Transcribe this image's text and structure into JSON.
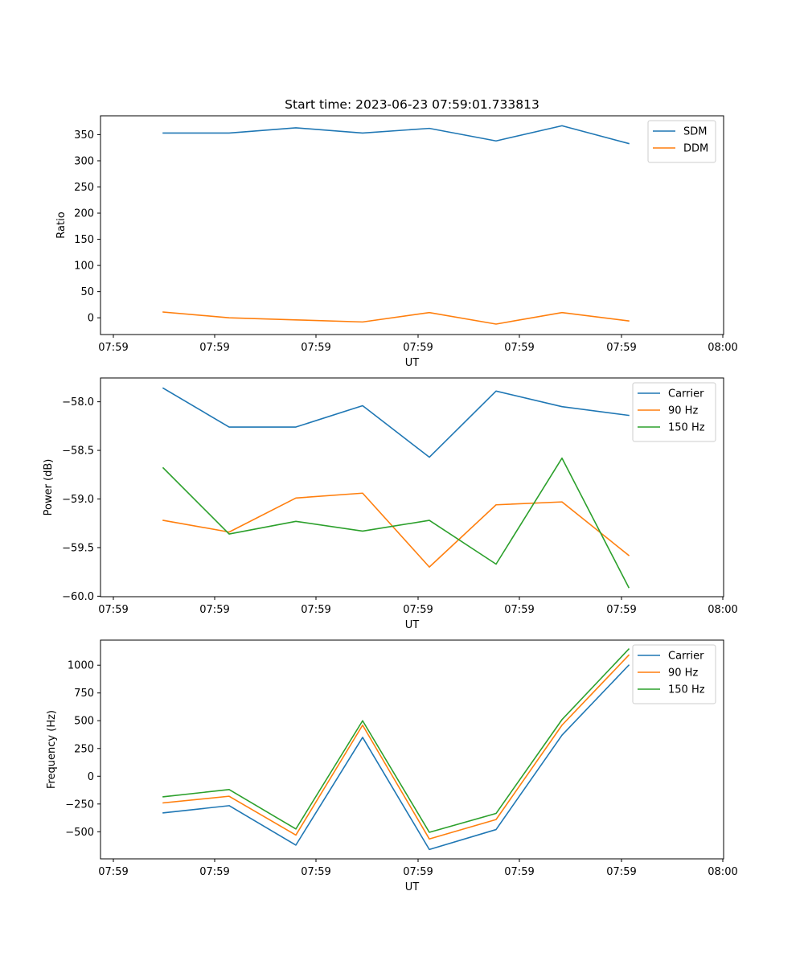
{
  "title": "Start time: 2023-06-23 07:59:01.733813",
  "colors": {
    "c0": "#1f77b4",
    "c1": "#ff7f0e",
    "c2": "#2ca02c"
  },
  "chart_data": [
    {
      "type": "line",
      "xlabel": "UT",
      "ylabel": "Ratio",
      "x_tick_labels": [
        "07:59",
        "07:59",
        "07:59",
        "07:59",
        "07:59",
        "07:59",
        "08:00"
      ],
      "y_ticks": [
        0,
        50,
        100,
        150,
        200,
        250,
        300,
        350
      ],
      "y_tick_labels": [
        "0",
        "50",
        "100",
        "150",
        "200",
        "250",
        "300",
        "350"
      ],
      "ylim": [
        -32,
        386
      ],
      "legend_placement": "top-right",
      "grid": false,
      "series": [
        {
          "name": "SDM",
          "color": "#1f77b4",
          "values": [
            353,
            353,
            363,
            353,
            362,
            338,
            367,
            333
          ]
        },
        {
          "name": "DDM",
          "color": "#ff7f0e",
          "values": [
            11,
            0,
            -4,
            -8,
            10,
            -12,
            10,
            -6
          ]
        }
      ]
    },
    {
      "type": "line",
      "xlabel": "UT",
      "ylabel": "Power (dB)",
      "x_tick_labels": [
        "07:59",
        "07:59",
        "07:59",
        "07:59",
        "07:59",
        "07:59",
        "08:00"
      ],
      "y_ticks": [
        -60.0,
        -59.5,
        -59.0,
        -58.5,
        -58.0
      ],
      "y_tick_labels": [
        "−60.0",
        "−59.5",
        "−59.0",
        "−58.5",
        "−58.0"
      ],
      "ylim": [
        -60.005,
        -57.755
      ],
      "legend_placement": "top-right",
      "grid": false,
      "series": [
        {
          "name": "Carrier",
          "color": "#1f77b4",
          "values": [
            -57.86,
            -58.26,
            -58.26,
            -58.04,
            -58.57,
            -57.89,
            -58.05,
            -58.14
          ]
        },
        {
          "name": "90 Hz",
          "color": "#ff7f0e",
          "values": [
            -59.22,
            -59.34,
            -58.99,
            -58.94,
            -59.7,
            -59.06,
            -59.03,
            -59.58
          ]
        },
        {
          "name": "150 Hz",
          "color": "#2ca02c",
          "values": [
            -58.68,
            -59.36,
            -59.23,
            -59.33,
            -59.22,
            -59.67,
            -58.58,
            -59.91
          ]
        }
      ]
    },
    {
      "type": "line",
      "xlabel": "UT",
      "ylabel": "Frequency (Hz)",
      "x_tick_labels": [
        "07:59",
        "07:59",
        "07:59",
        "07:59",
        "07:59",
        "07:59",
        "08:00"
      ],
      "y_ticks": [
        -500,
        -250,
        0,
        250,
        500,
        750,
        1000
      ],
      "y_tick_labels": [
        "−500",
        "−250",
        "0",
        "250",
        "500",
        "750",
        "1000"
      ],
      "ylim": [
        -744,
        1226
      ],
      "legend_placement": "top-right",
      "grid": false,
      "series": [
        {
          "name": "Carrier",
          "color": "#1f77b4",
          "values": [
            -330,
            -265,
            -620,
            350,
            -660,
            -480,
            370,
            1000
          ]
        },
        {
          "name": "90 Hz",
          "color": "#ff7f0e",
          "values": [
            -240,
            -180,
            -530,
            460,
            -565,
            -390,
            460,
            1090
          ]
        },
        {
          "name": "150 Hz",
          "color": "#2ca02c",
          "values": [
            -185,
            -120,
            -475,
            500,
            -505,
            -335,
            510,
            1145
          ]
        }
      ]
    }
  ]
}
